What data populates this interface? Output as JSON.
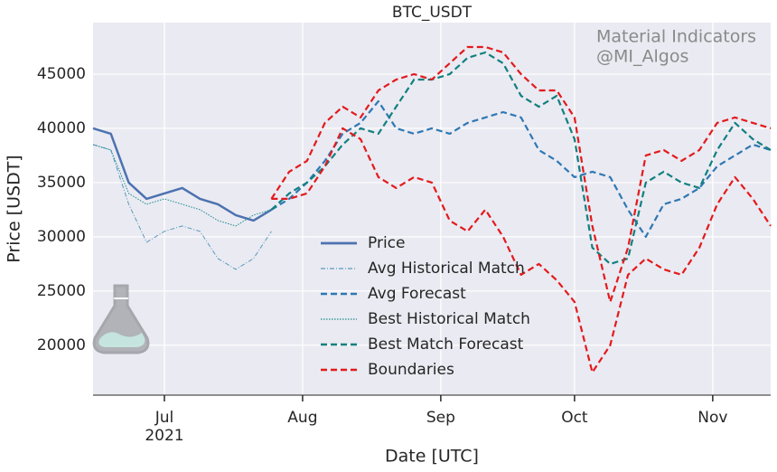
{
  "chart_data": {
    "type": "line",
    "title": "BTC_USDT",
    "watermark": [
      "Material Indicators",
      "@MI_Algos"
    ],
    "x_label": "Date [UTC]",
    "y_label": "Price [USDT]",
    "x": [
      -16,
      -12,
      -8,
      -4,
      0,
      4,
      8,
      12,
      16,
      20,
      24,
      28,
      32,
      36,
      40,
      44,
      48,
      52,
      56,
      60,
      64,
      68,
      72,
      76,
      80,
      84,
      88,
      92,
      96,
      100,
      104,
      108,
      112,
      116,
      120,
      124,
      128,
      132,
      136
    ],
    "xlim": [
      -16,
      136
    ],
    "xticks": [
      {
        "value": 0,
        "label": "Jul\n2021"
      },
      {
        "value": 31,
        "label": "Aug"
      },
      {
        "value": 62,
        "label": "Sep"
      },
      {
        "value": 92,
        "label": "Oct"
      },
      {
        "value": 123,
        "label": "Nov"
      }
    ],
    "ylim": [
      15400,
      49750
    ],
    "yticks": [
      20000,
      25000,
      30000,
      35000,
      40000,
      45000
    ],
    "grid": true,
    "series": [
      {
        "name": "Price",
        "color": "#4c72b0",
        "style": "solid",
        "values": [
          40000,
          39500,
          35000,
          33500,
          34000,
          34500,
          33500,
          33000,
          32000,
          31500,
          32500,
          null,
          null,
          null,
          null,
          null,
          null,
          null,
          null,
          null,
          null,
          null,
          null,
          null,
          null,
          null,
          null,
          null,
          null,
          null,
          null,
          null,
          null,
          null,
          null,
          null,
          null,
          null,
          null
        ]
      },
      {
        "name": "Avg Historical Match",
        "color": "#5a9bbd",
        "style": "dashdot",
        "values": [
          38500,
          38000,
          33000,
          29500,
          30500,
          31000,
          30500,
          28000,
          27000,
          28000,
          30500,
          null,
          null,
          null,
          null,
          null,
          null,
          null,
          null,
          null,
          null,
          null,
          null,
          null,
          null,
          null,
          null,
          null,
          null,
          null,
          null,
          null,
          null,
          null,
          null,
          null,
          null,
          null,
          null
        ]
      },
      {
        "name": "Avg Forecast",
        "color": "#2e78b4",
        "style": "dashed",
        "values": [
          null,
          null,
          null,
          null,
          null,
          null,
          null,
          null,
          null,
          null,
          32500,
          33500,
          35000,
          37000,
          39500,
          40500,
          42500,
          40000,
          39500,
          40000,
          39500,
          40500,
          41000,
          41500,
          41000,
          38000,
          37000,
          35500,
          36000,
          35500,
          32500,
          30000,
          33000,
          33500,
          34500,
          36500,
          37500,
          38500,
          38000
        ]
      },
      {
        "name": "Best Historical Match",
        "color": "#1a8c8c",
        "style": "dotted",
        "values": [
          38500,
          38000,
          34000,
          33000,
          33500,
          33000,
          32500,
          31500,
          31000,
          32000,
          32500,
          null,
          null,
          null,
          null,
          null,
          null,
          null,
          null,
          null,
          null,
          null,
          null,
          null,
          null,
          null,
          null,
          null,
          null,
          null,
          null,
          null,
          null,
          null,
          null,
          null,
          null,
          null,
          null
        ]
      },
      {
        "name": "Best Match Forecast",
        "color": "#11807f",
        "style": "dashed",
        "values": [
          null,
          null,
          null,
          null,
          null,
          null,
          null,
          null,
          null,
          null,
          32500,
          34000,
          35000,
          36500,
          38500,
          40000,
          39500,
          42000,
          44500,
          44500,
          45000,
          46500,
          47000,
          46000,
          43000,
          42000,
          43000,
          39000,
          29000,
          27500,
          28000,
          35000,
          36000,
          35000,
          34500,
          38000,
          40500,
          39000,
          38000
        ]
      },
      {
        "name": "Boundaries",
        "color": "#e31a1c",
        "style": "dashed",
        "values": [
          null,
          null,
          null,
          null,
          null,
          null,
          null,
          null,
          null,
          null,
          33500,
          36000,
          37000,
          40500,
          42000,
          41000,
          43500,
          44500,
          45000,
          44500,
          46000,
          47500,
          47500,
          47000,
          45000,
          43500,
          43500,
          41000,
          31000,
          24000,
          29000,
          37500,
          38000,
          37000,
          38000,
          40500,
          41000,
          40500,
          40000
        ],
        "lower": [
          null,
          null,
          null,
          null,
          null,
          null,
          null,
          null,
          null,
          null,
          33500,
          33500,
          34000,
          36500,
          40000,
          39000,
          35500,
          34500,
          35500,
          35000,
          31500,
          30500,
          32500,
          30000,
          26500,
          27500,
          26000,
          24000,
          17500,
          20000,
          26500,
          28000,
          27000,
          26500,
          29000,
          33000,
          35500,
          33500,
          31000
        ]
      }
    ]
  }
}
